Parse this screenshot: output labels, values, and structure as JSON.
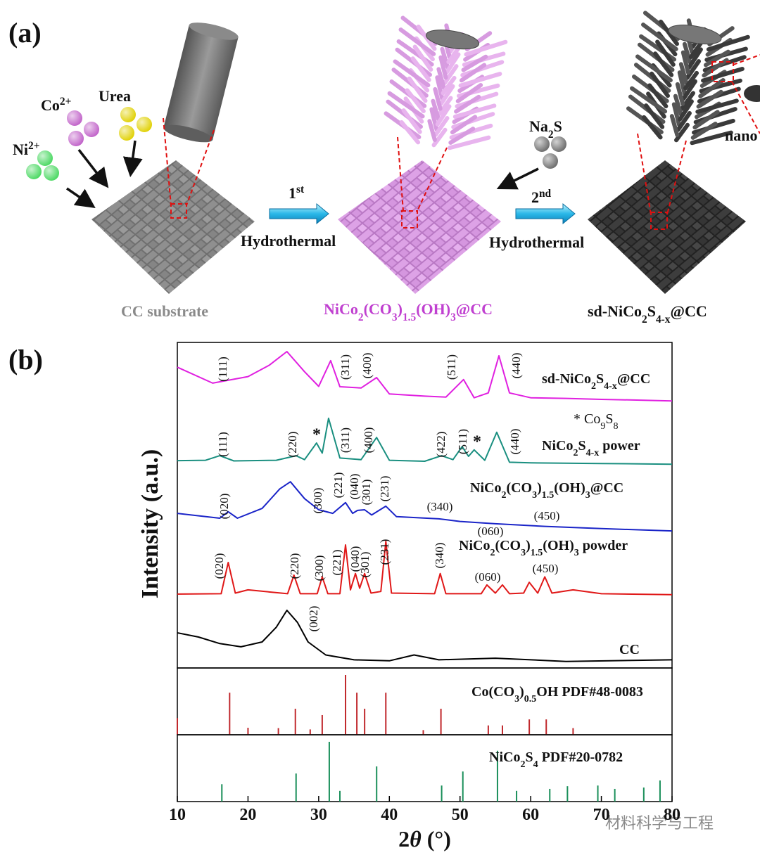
{
  "panel_a": {
    "label": "(a)",
    "ni": [
      {
        "text": "Ni"
      },
      {
        "sup": "2+"
      }
    ],
    "co": [
      {
        "text": "Co"
      },
      {
        "sup": "2+"
      }
    ],
    "urea": "Urea",
    "step1": [
      {
        "text": "1"
      },
      {
        "sup": "st"
      }
    ],
    "step1_method": "Hydrothermal",
    "na2s": [
      {
        "text": "Na"
      },
      {
        "sub": "2"
      },
      {
        "text": "S"
      }
    ],
    "step2": [
      {
        "text": "2"
      },
      {
        "sup": "nd"
      }
    ],
    "step2_method": "Hydrothermal",
    "nano": "nano",
    "cc": "CC substrate",
    "mid": [
      {
        "text": "NiCo"
      },
      {
        "sub": "2"
      },
      {
        "text": "(CO"
      },
      {
        "sub": "3"
      },
      {
        "text": ")"
      },
      {
        "sub": "1.5"
      },
      {
        "text": "(OH)"
      },
      {
        "sub": "3"
      },
      {
        "text": "@CC"
      }
    ],
    "final": [
      {
        "text": "sd-NiCo"
      },
      {
        "sub": "2"
      },
      {
        "text": "S"
      },
      {
        "sub": "4-x"
      },
      {
        "text": "@CC"
      }
    ]
  },
  "panel_b_label": "(b)",
  "watermark": "材料科学与工程",
  "chart_data": [
    {
      "type": "line",
      "ylabel": "Intensity (a.u.)",
      "xlim": [
        10,
        80
      ],
      "ylim": [
        0,
        100
      ],
      "co9s8_note": [
        {
          "text": "* Co"
        },
        {
          "sub": "9"
        },
        {
          "text": "S"
        },
        {
          "sub": "8"
        }
      ],
      "series": [
        {
          "name": [
            {
              "text": "sd-NiCo"
            },
            {
              "sub": "2"
            },
            {
              "text": "S"
            },
            {
              "sub": "4-x"
            },
            {
              "text": "@CC"
            }
          ],
          "color": "#e020e0",
          "x": [
            10,
            15,
            20,
            23,
            25.5,
            28,
            30,
            31.7,
            33,
            36,
            38.2,
            40,
            45,
            48,
            50.5,
            52,
            54,
            55.5,
            57,
            60,
            65,
            70,
            75,
            80
          ],
          "values": [
            92.4,
            87.5,
            89.5,
            93,
            97.2,
            91,
            86.5,
            94.4,
            86.4,
            86,
            89.2,
            84.2,
            83.5,
            83.2,
            88.6,
            83,
            84.5,
            95.9,
            84.5,
            83,
            82.8,
            82.5,
            82.3,
            82
          ],
          "annotations": [
            "(111)",
            "(311)",
            "(400)",
            "(511)",
            "(440)"
          ]
        },
        {
          "name": [
            {
              "text": "NiCo"
            },
            {
              "sub": "2"
            },
            {
              "text": "S"
            },
            {
              "sub": "4-x"
            },
            {
              "text": " power"
            }
          ],
          "color": "#1a8f80",
          "x": [
            10,
            14,
            16,
            18,
            24,
            26.8,
            28,
            29.7,
            30.5,
            31.4,
            33,
            36,
            38.2,
            40,
            45,
            47.4,
            49,
            50.3,
            51.2,
            52,
            53.5,
            55.2,
            57,
            60,
            70,
            80
          ],
          "values": [
            63.7,
            63.8,
            65.2,
            63.6,
            63.8,
            65.2,
            64,
            69.1,
            66,
            76.7,
            64.5,
            64,
            70.8,
            63.8,
            63.5,
            65.2,
            64,
            68,
            65,
            67,
            63.8,
            72.4,
            63.2,
            63,
            62.8,
            62.6
          ],
          "annotations": [
            "(111)",
            "(220)",
            "*",
            "(311)",
            "(400)",
            "(422)",
            "(511)",
            "*",
            "(440)"
          ]
        },
        {
          "name": [
            {
              "text": "NiCo"
            },
            {
              "sub": "2"
            },
            {
              "text": "(CO"
            },
            {
              "sub": "3"
            },
            {
              "text": ")"
            },
            {
              "sub": "1.5"
            },
            {
              "text": "(OH)"
            },
            {
              "sub": "3"
            },
            {
              "text": "@CC"
            }
          ],
          "color": "#1a24c8",
          "x": [
            10,
            16,
            17.2,
            18.5,
            22,
            24.5,
            26,
            28,
            30,
            32,
            33.8,
            34.8,
            35.5,
            36.5,
            37.5,
            39.5,
            41,
            47,
            50,
            55,
            62,
            70,
            80
          ],
          "values": [
            47.5,
            46,
            48,
            46,
            49,
            55,
            57.2,
            52,
            48.6,
            47.5,
            50.8,
            47.5,
            48.4,
            48.6,
            47,
            49.7,
            46.5,
            45.8,
            45,
            44.3,
            43.5,
            42.8,
            42.1
          ],
          "annotations": [
            "(020)",
            "(300)",
            "(221)",
            "(040)",
            "(301)",
            "(231)",
            "(340)",
            "(060)",
            "(450)"
          ]
        },
        {
          "name": [
            {
              "text": "NiCo"
            },
            {
              "sub": "2"
            },
            {
              "text": "(CO"
            },
            {
              "sub": "3"
            },
            {
              "text": ")"
            },
            {
              "sub": "1.5"
            },
            {
              "text": "(OH)"
            },
            {
              "sub": "3"
            },
            {
              "text": " powder"
            }
          ],
          "color": "#e01818",
          "x": [
            10,
            16.2,
            17.2,
            18.2,
            20,
            25.6,
            26.5,
            27.4,
            29.8,
            30.5,
            31.3,
            33,
            33.8,
            34.5,
            35.2,
            35.8,
            36.5,
            37.4,
            38.8,
            39.5,
            40.3,
            46.4,
            47.2,
            48,
            53,
            53.8,
            55,
            56,
            57,
            59,
            59.8,
            61,
            62,
            63,
            66,
            70,
            80
          ],
          "values": [
            22.7,
            22.8,
            32.4,
            23,
            24,
            22.8,
            28.5,
            22.8,
            22.8,
            28,
            22.8,
            22.8,
            37.8,
            24,
            29,
            24.5,
            29,
            23,
            23.5,
            38.9,
            23,
            22.8,
            29,
            22.8,
            22.8,
            25.5,
            23,
            25.5,
            22.8,
            23,
            26.3,
            23,
            28,
            23,
            24,
            22.8,
            22.5
          ],
          "annotations": [
            "(020)",
            "(220)",
            "(300)",
            "(221)",
            "(040)",
            "(301)",
            "(231)",
            "(340)",
            "(060)",
            "(450)"
          ]
        },
        {
          "name": [
            {
              "text": "CC"
            }
          ],
          "color": "#000000",
          "x": [
            10,
            13,
            16,
            19,
            22,
            24,
            25.5,
            27,
            28.5,
            31,
            35,
            40,
            43.5,
            47,
            55,
            65,
            80
          ],
          "values": [
            10.8,
            9.5,
            7.5,
            6.5,
            8,
            12.5,
            17.7,
            14,
            8,
            4,
            2.5,
            2.2,
            4,
            2.5,
            3,
            2,
            2.5
          ],
          "annotations": [
            "(002)"
          ]
        }
      ]
    },
    {
      "type": "stem",
      "name": [
        {
          "text": "Co(CO"
        },
        {
          "sub": "3"
        },
        {
          "text": ")"
        },
        {
          "sub": "0.5"
        },
        {
          "text": "OH PDF#48-0083"
        }
      ],
      "color": "#c0282c",
      "xlim": [
        10,
        80
      ],
      "ylim": [
        0,
        100
      ],
      "x": [
        10,
        17.4,
        20,
        24.3,
        26.7,
        28.8,
        30.5,
        33.8,
        35.4,
        36.5,
        39.5,
        44.8,
        47.3,
        54,
        56,
        59.8,
        62.2,
        66
      ],
      "values": [
        25,
        63,
        10.5,
        10,
        39,
        8,
        29.5,
        89.5,
        63,
        39,
        63,
        7,
        39,
        14,
        14,
        23,
        23,
        10
      ]
    },
    {
      "type": "stem",
      "name": [
        {
          "text": "NiCo"
        },
        {
          "sub": "2"
        },
        {
          "text": "S"
        },
        {
          "sub": "4"
        },
        {
          "text": " PDF#20-0782"
        }
      ],
      "color": "#1a8f5a",
      "xlim": [
        10,
        80
      ],
      "ylim": [
        0,
        100
      ],
      "x": [
        16.3,
        26.8,
        31.5,
        33,
        38.2,
        47.4,
        50.4,
        55.3,
        58,
        62.7,
        65.2,
        69.5,
        71.9,
        76,
        78.3
      ],
      "values": [
        26,
        42,
        89.5,
        16,
        52.6,
        24,
        45,
        76,
        16,
        19,
        23,
        24,
        19,
        21,
        31.6
      ],
      "xticks": [
        10,
        20,
        30,
        40,
        50,
        60,
        70,
        80
      ],
      "xlabel": [
        {
          "text": "2"
        },
        {
          "italic": "θ"
        },
        {
          "text": " (°)"
        }
      ]
    }
  ]
}
